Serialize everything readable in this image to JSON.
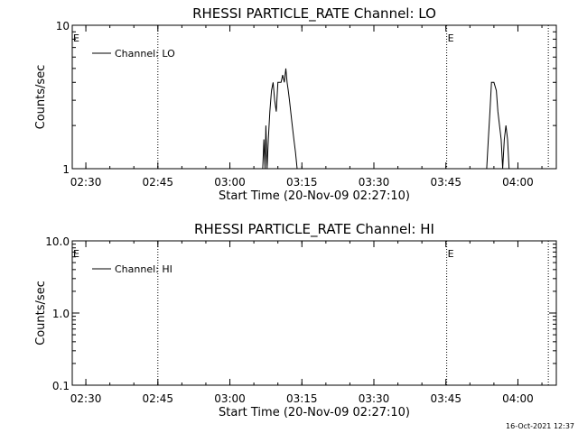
{
  "footer": {
    "timestamp": "16-Oct-2021 12:37"
  },
  "chart_data": [
    {
      "type": "line",
      "title": "RHESSI PARTICLE_RATE Channel: LO",
      "xlabel": "Start Time (20-Nov-09 02:27:10)",
      "ylabel": "Counts/sec",
      "yscale": "log",
      "ylim": [
        1,
        10
      ],
      "xlim": [
        "02:27:10",
        "04:08:00"
      ],
      "x_ticks": [
        "02:30",
        "02:45",
        "03:00",
        "03:15",
        "03:30",
        "03:45",
        "04:00"
      ],
      "y_ticks": [
        "1",
        "10"
      ],
      "grid": false,
      "legend_position": "top-left",
      "legend": [
        "Channel: LO"
      ],
      "series": [
        {
          "name": "Channel: LO",
          "x": [
            "03:06:50",
            "03:07:05",
            "03:07:20",
            "03:07:30",
            "03:07:45",
            "03:08:00",
            "03:08:20",
            "03:08:40",
            "03:09:00",
            "03:09:20",
            "03:09:40",
            "03:10:00",
            "03:10:20",
            "03:10:40",
            "03:11:00",
            "03:11:20",
            "03:11:40",
            "03:11:55",
            "03:12:10",
            "03:12:25",
            "03:12:40",
            "03:13:00",
            "03:13:20",
            "03:13:40",
            "03:14:00",
            "03:14:20",
            "03:14:40",
            "03:15:00",
            "03:15:20",
            "03:53:30",
            "03:53:50",
            "03:54:10",
            "03:54:30",
            "03:55:00",
            "03:55:30",
            "03:55:50",
            "03:56:10",
            "03:56:30",
            "03:56:50",
            "03:57:10",
            "03:57:30",
            "03:57:50",
            "03:58:10",
            "03:58:30"
          ],
          "y": [
            1,
            1.6,
            1,
            2,
            1,
            1.6,
            2.5,
            3.5,
            4,
            3,
            2.5,
            4,
            4,
            4,
            4.5,
            4,
            5,
            4,
            3.5,
            3,
            2.5,
            2,
            1.6,
            1.3,
            1,
            1,
            1,
            1,
            1,
            1,
            1.6,
            2.5,
            4,
            4,
            3.5,
            2.5,
            2,
            1.6,
            1,
            1.6,
            2,
            1.6,
            1,
            1
          ]
        }
      ],
      "annotations": [
        {
          "type": "vline",
          "x": "02:45:00",
          "style": "dotted"
        },
        {
          "type": "vline",
          "x": "03:45:10",
          "style": "dotted",
          "label": "E"
        },
        {
          "type": "vline",
          "x": "04:06:20",
          "style": "dotted"
        },
        {
          "type": "text",
          "x": "02:27:10",
          "label": "E"
        }
      ]
    },
    {
      "type": "line",
      "title": "RHESSI PARTICLE_RATE Channel: HI",
      "xlabel": "Start Time (20-Nov-09 02:27:10)",
      "ylabel": "Counts/sec",
      "yscale": "log",
      "ylim": [
        0.1,
        10
      ],
      "xlim": [
        "02:27:10",
        "04:08:00"
      ],
      "x_ticks": [
        "02:30",
        "02:45",
        "03:00",
        "03:15",
        "03:30",
        "03:45",
        "04:00"
      ],
      "y_ticks": [
        "0.1",
        "1.0",
        "10.0"
      ],
      "grid": false,
      "legend_position": "top-left",
      "legend": [
        "Channel: HI"
      ],
      "series": [
        {
          "name": "Channel: HI",
          "x": [],
          "y": []
        }
      ],
      "annotations": [
        {
          "type": "vline",
          "x": "02:45:00",
          "style": "dotted"
        },
        {
          "type": "vline",
          "x": "03:45:10",
          "style": "dotted",
          "label": "E"
        },
        {
          "type": "vline",
          "x": "04:06:20",
          "style": "dotted"
        },
        {
          "type": "text",
          "x": "02:27:10",
          "label": "E"
        }
      ]
    }
  ]
}
